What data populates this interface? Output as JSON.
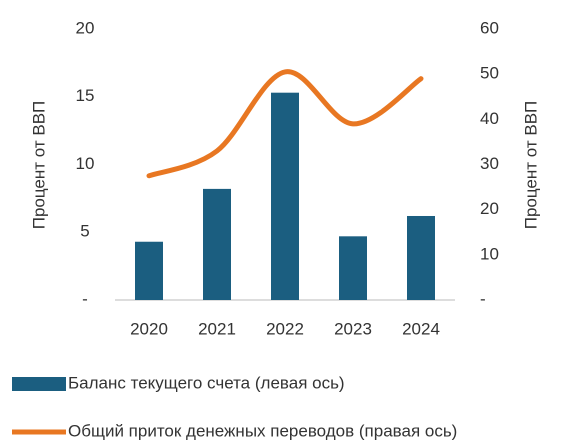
{
  "chart_data": {
    "type": "bar_line",
    "categories": [
      "2020",
      "2021",
      "2022",
      "2023",
      "2024"
    ],
    "y_label": "Процент от ВВП",
    "y2_label": "Процент от ВВП",
    "ylim": [
      0,
      20
    ],
    "yticks": [
      {
        "value": 0,
        "label": "-"
      },
      5,
      10,
      15,
      20
    ],
    "y2lim": [
      0,
      60
    ],
    "y2ticks": [
      {
        "value": 0,
        "label": "-"
      },
      10,
      20,
      30,
      40,
      50,
      60
    ],
    "series": [
      {
        "name": "Баланс текущего счета (левая ось)",
        "type": "bar",
        "color": "#1b5e80",
        "values": [
          4.3,
          8.2,
          15.3,
          4.7,
          6.2
        ]
      },
      {
        "name": "Общий приток денежных переводов (правая ось)",
        "type": "line",
        "axis": "y2",
        "color": "#e87722",
        "values": [
          27.5,
          33,
          50.5,
          39,
          49
        ]
      }
    ]
  }
}
